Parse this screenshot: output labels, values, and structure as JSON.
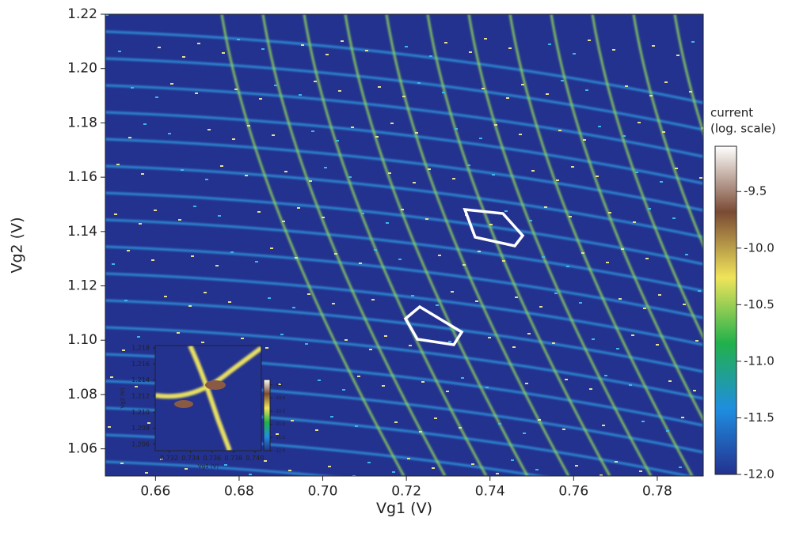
{
  "chart_data": [
    {
      "type": "heatmap",
      "x_label": "Vg1 (V)",
      "y_label": "Vg2 (V)",
      "xlim": [
        0.648,
        0.791
      ],
      "ylim": [
        1.05,
        1.22
      ],
      "xticks": [
        0.66,
        0.68,
        {
          "value": 0.7,
          "label": "0.70"
        },
        0.72,
        0.74,
        0.76,
        0.78
      ],
      "yticks": [
        1.06,
        1.08,
        {
          "value": 1.1,
          "label": "1.10"
        },
        1.12,
        1.14,
        1.16,
        1.18,
        {
          "value": 1.2,
          "label": "1.20"
        },
        1.22
      ],
      "colorbar": {
        "label": [
          "current",
          "(log. scale)"
        ],
        "lim": [
          -12.0,
          -9.1
        ],
        "ticks": [
          -9.5,
          {
            "value": -10,
            "label": "-10.0"
          },
          -10.5,
          {
            "value": -11,
            "label": "-11.0"
          },
          -11.5,
          {
            "value": -12,
            "label": "-12.0"
          }
        ],
        "colors": [
          "#23318f",
          "#1f8ee0",
          "#21b14b",
          "#f0e45a",
          "#7a4a34",
          "#ffffff"
        ]
      }
    },
    {
      "type": "heatmap",
      "x_label": "Vg1 (V)",
      "y_label": "Vg2 (V)",
      "xlim": [
        0.7307,
        0.7406
      ],
      "ylim": [
        1.2052,
        1.2183
      ],
      "xticks": [
        0.732,
        0.734,
        0.736,
        0.738,
        {
          "value": 0.74,
          "label": "0.740"
        }
      ],
      "yticks": [
        1.206,
        1.208,
        {
          "value": 1.21,
          "label": "1.210"
        },
        1.212,
        1.214,
        1.216,
        1.218
      ],
      "colorbar": {
        "lim": [
          -12.0,
          -9.3
        ],
        "ticks": [
          -9.5,
          {
            "value": -10,
            "label": "-10.0"
          },
          -10.5,
          {
            "value": -11,
            "label": "-11.0"
          },
          -11.5,
          {
            "value": -12,
            "label": "-12.0"
          }
        ],
        "colors": [
          "#23318f",
          "#1f8ee0",
          "#21b14b",
          "#f0e45a",
          "#7a4a34",
          "#ffffff"
        ]
      }
    }
  ]
}
